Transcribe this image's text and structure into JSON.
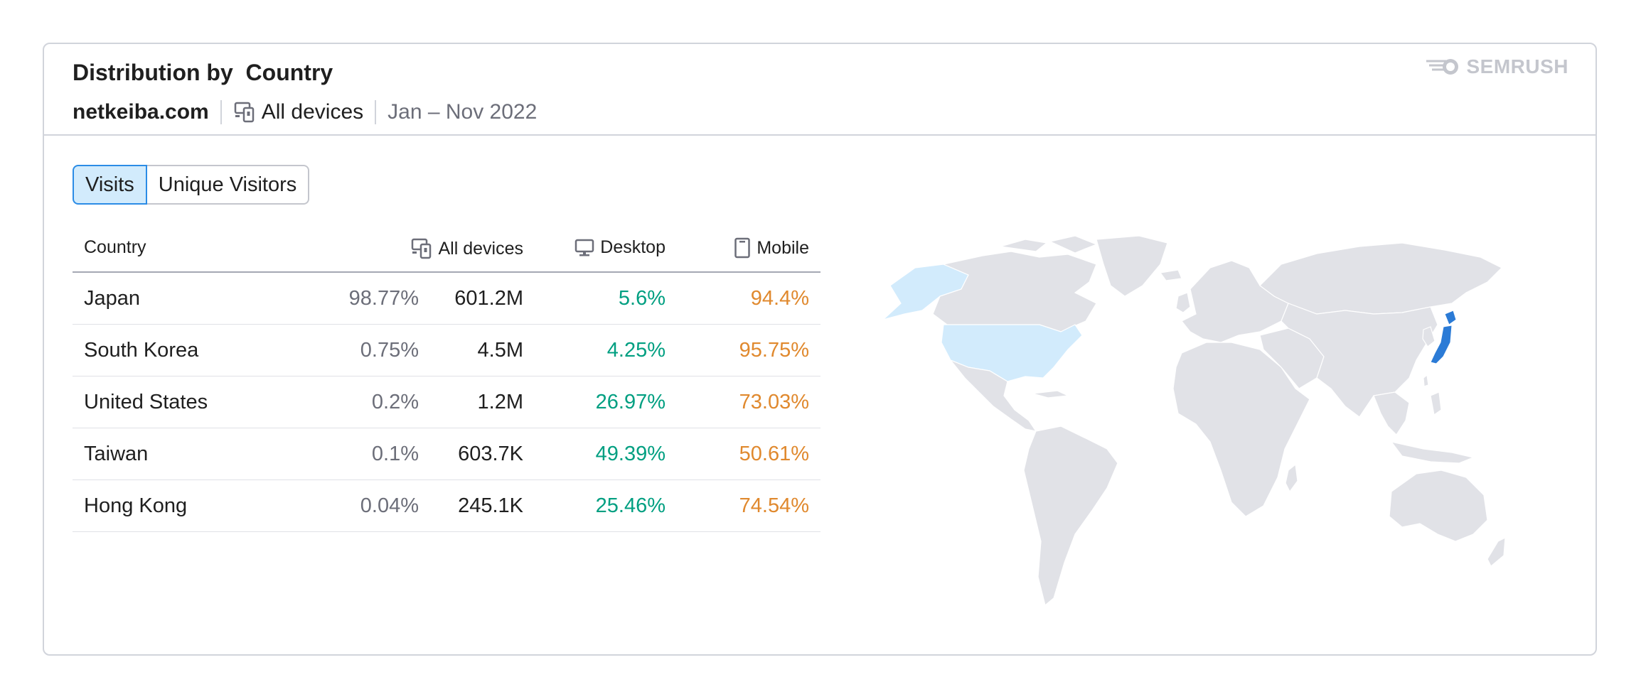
{
  "widget": {
    "title": "Distribution by  Country",
    "domain": "netkeiba.com",
    "device_filter": "All devices",
    "date_range": "Jan – Nov 2022",
    "brand": "SEMRUSH"
  },
  "tabs": [
    {
      "label": "Visits",
      "active": true
    },
    {
      "label": "Unique Visitors",
      "active": false
    }
  ],
  "table": {
    "headers": {
      "country": "Country",
      "all_devices": "All devices",
      "desktop": "Desktop",
      "mobile": "Mobile"
    },
    "rows": [
      {
        "country": "Japan",
        "share": "98.77%",
        "visits": "601.2M",
        "desktop": "5.6%",
        "mobile": "94.4%"
      },
      {
        "country": "South Korea",
        "share": "0.75%",
        "visits": "4.5M",
        "desktop": "4.25%",
        "mobile": "95.75%"
      },
      {
        "country": "United States",
        "share": "0.2%",
        "visits": "1.2M",
        "desktop": "26.97%",
        "mobile": "73.03%"
      },
      {
        "country": "Taiwan",
        "share": "0.1%",
        "visits": "603.7K",
        "desktop": "49.39%",
        "mobile": "50.61%"
      },
      {
        "country": "Hong Kong",
        "share": "0.04%",
        "visits": "245.1K",
        "desktop": "25.46%",
        "mobile": "74.54%"
      }
    ]
  },
  "map": {
    "highlight_strong": [
      "Japan"
    ],
    "highlight_light": [
      "United States"
    ]
  },
  "colors": {
    "accent_blue": "#2b8ce6",
    "desktop_green": "#009f81",
    "mobile_orange": "#e0892e",
    "map_land": "#e1e2e7",
    "map_light": "#d2ebfc",
    "map_strong": "#2b7bd6"
  },
  "icons": {
    "devices": "devices-icon",
    "desktop": "desktop-icon",
    "mobile": "mobile-icon",
    "logo": "semrush-logo-icon"
  }
}
